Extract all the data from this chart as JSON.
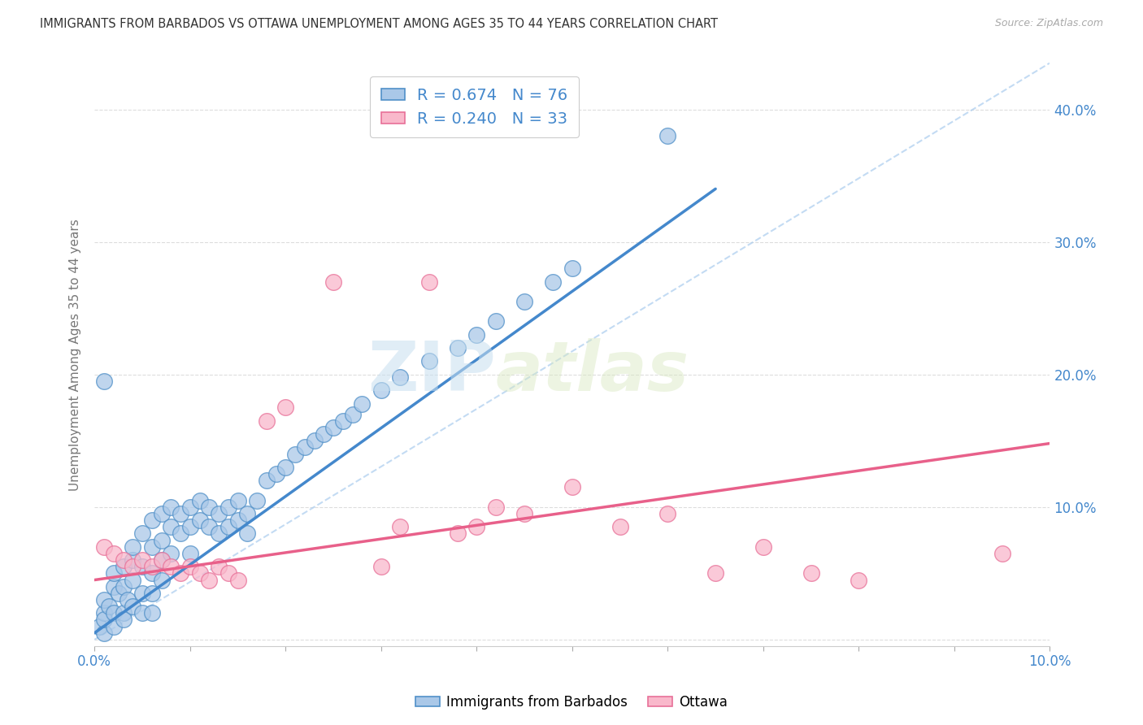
{
  "title": "IMMIGRANTS FROM BARBADOS VS OTTAWA UNEMPLOYMENT AMONG AGES 35 TO 44 YEARS CORRELATION CHART",
  "source": "Source: ZipAtlas.com",
  "ylabel": "Unemployment Among Ages 35 to 44 years",
  "xlim": [
    0.0,
    0.1
  ],
  "ylim": [
    -0.005,
    0.435
  ],
  "blue_R": 0.674,
  "blue_N": 76,
  "pink_R": 0.24,
  "pink_N": 33,
  "blue_color": "#aac8e8",
  "pink_color": "#f9b8cb",
  "blue_edge_color": "#5090c8",
  "pink_edge_color": "#e87098",
  "blue_line_color": "#4488cc",
  "pink_line_color": "#e8608a",
  "watermark_zip": "ZIP",
  "watermark_atlas": "atlas",
  "legend_label_blue": "Immigrants from Barbados",
  "legend_label_pink": "Ottawa",
  "blue_scatter_x": [
    0.0005,
    0.001,
    0.001,
    0.001,
    0.001,
    0.0015,
    0.002,
    0.002,
    0.002,
    0.002,
    0.0025,
    0.003,
    0.003,
    0.003,
    0.003,
    0.0035,
    0.004,
    0.004,
    0.004,
    0.004,
    0.005,
    0.005,
    0.005,
    0.005,
    0.006,
    0.006,
    0.006,
    0.006,
    0.006,
    0.007,
    0.007,
    0.007,
    0.007,
    0.008,
    0.008,
    0.008,
    0.009,
    0.009,
    0.01,
    0.01,
    0.01,
    0.011,
    0.011,
    0.012,
    0.012,
    0.013,
    0.013,
    0.014,
    0.014,
    0.015,
    0.015,
    0.016,
    0.016,
    0.017,
    0.018,
    0.019,
    0.02,
    0.021,
    0.022,
    0.023,
    0.024,
    0.025,
    0.026,
    0.027,
    0.028,
    0.03,
    0.032,
    0.035,
    0.038,
    0.04,
    0.042,
    0.045,
    0.048,
    0.05,
    0.06,
    0.001
  ],
  "blue_scatter_y": [
    0.01,
    0.02,
    0.005,
    0.03,
    0.015,
    0.025,
    0.04,
    0.02,
    0.01,
    0.05,
    0.035,
    0.055,
    0.02,
    0.04,
    0.015,
    0.03,
    0.06,
    0.045,
    0.025,
    0.07,
    0.08,
    0.055,
    0.035,
    0.02,
    0.09,
    0.07,
    0.05,
    0.035,
    0.02,
    0.095,
    0.075,
    0.06,
    0.045,
    0.1,
    0.085,
    0.065,
    0.095,
    0.08,
    0.1,
    0.085,
    0.065,
    0.105,
    0.09,
    0.1,
    0.085,
    0.095,
    0.08,
    0.1,
    0.085,
    0.105,
    0.09,
    0.095,
    0.08,
    0.105,
    0.12,
    0.125,
    0.13,
    0.14,
    0.145,
    0.15,
    0.155,
    0.16,
    0.165,
    0.17,
    0.178,
    0.188,
    0.198,
    0.21,
    0.22,
    0.23,
    0.24,
    0.255,
    0.27,
    0.28,
    0.38,
    0.195
  ],
  "pink_scatter_x": [
    0.001,
    0.002,
    0.003,
    0.004,
    0.005,
    0.006,
    0.007,
    0.008,
    0.009,
    0.01,
    0.011,
    0.012,
    0.013,
    0.014,
    0.015,
    0.018,
    0.02,
    0.025,
    0.03,
    0.032,
    0.035,
    0.038,
    0.04,
    0.042,
    0.045,
    0.05,
    0.055,
    0.06,
    0.065,
    0.07,
    0.075,
    0.08,
    0.095
  ],
  "pink_scatter_y": [
    0.07,
    0.065,
    0.06,
    0.055,
    0.06,
    0.055,
    0.06,
    0.055,
    0.05,
    0.055,
    0.05,
    0.045,
    0.055,
    0.05,
    0.045,
    0.165,
    0.175,
    0.27,
    0.055,
    0.085,
    0.27,
    0.08,
    0.085,
    0.1,
    0.095,
    0.115,
    0.085,
    0.095,
    0.05,
    0.07,
    0.05,
    0.045,
    0.065
  ],
  "blue_trendline_x": [
    0.0,
    0.065
  ],
  "blue_trendline_y": [
    0.005,
    0.34
  ],
  "pink_trendline_x": [
    0.0,
    0.1
  ],
  "pink_trendline_y": [
    0.045,
    0.148
  ],
  "diag_line_x": [
    0.0,
    0.1
  ],
  "diag_line_y": [
    0.0,
    0.435
  ],
  "ytick_vals": [
    0.0,
    0.1,
    0.2,
    0.3,
    0.4
  ],
  "xtick_vals": [
    0.0,
    0.01,
    0.02,
    0.03,
    0.04,
    0.05,
    0.06,
    0.07,
    0.08,
    0.09,
    0.1
  ],
  "xtick_labels": [
    "0.0%",
    "",
    "",
    "",
    "",
    "",
    "",
    "",
    "",
    "",
    "10.0%"
  ],
  "right_ytick_labels": [
    "10.0%",
    "20.0%",
    "30.0%",
    "40.0%"
  ],
  "right_ytick_vals": [
    0.1,
    0.2,
    0.3,
    0.4
  ],
  "background_color": "#ffffff",
  "grid_color": "#dddddd"
}
